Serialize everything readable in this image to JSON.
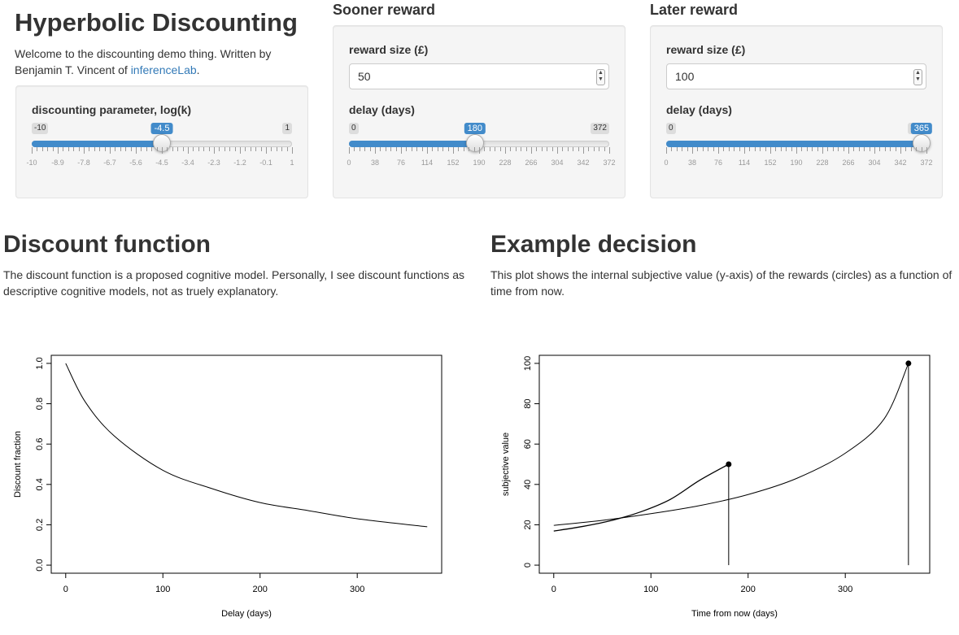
{
  "app": {
    "title": "Hyperbolic Discounting",
    "intro_text": "Welcome to the discounting demo thing. Written by Benjamin T. Vincent of",
    "intro_link": "inferenceLab",
    "intro_end": "."
  },
  "discount_panel": {
    "label": "discounting parameter, log(k)",
    "min": "-10",
    "max": "1",
    "value": -4.5,
    "value_label": "-4.5",
    "ticks": [
      "-10",
      "-8.9",
      "-7.8",
      "-6.7",
      "-5.6",
      "-4.5",
      "-3.4",
      "-2.3",
      "-1.2",
      "-0.1",
      "1"
    ]
  },
  "sooner": {
    "title": "Sooner reward",
    "reward_label": "reward size (£)",
    "reward_value": "50",
    "delay_label": "delay (days)",
    "min": "0",
    "max": "372",
    "value": 180,
    "value_label": "180",
    "ticks": [
      "0",
      "38",
      "76",
      "114",
      "152",
      "190",
      "228",
      "266",
      "304",
      "342",
      "372"
    ]
  },
  "later": {
    "title": "Later reward",
    "reward_label": "reward size (£)",
    "reward_value": "100",
    "delay_label": "delay (days)",
    "min": "0",
    "max": "372",
    "value": 365,
    "value_label": "365",
    "ticks": [
      "0",
      "38",
      "76",
      "114",
      "152",
      "190",
      "228",
      "266",
      "304",
      "342",
      "372"
    ]
  },
  "discount_section": {
    "title": "Discount function",
    "description": "The discount function is a proposed cognitive model. Personally, I see discount functions as descriptive cognitive models, not as truely explanatory."
  },
  "decision_section": {
    "title": "Example decision",
    "description": "This plot shows the internal subjective value (y-axis) of the rewards (circles) as a function of time from now."
  },
  "chart_data": [
    {
      "type": "line",
      "title": "",
      "xlabel": "Delay (days)",
      "ylabel": "Discount fraction",
      "xlim": [
        0,
        372
      ],
      "ylim": [
        0,
        1
      ],
      "xticks": [
        "0",
        "100",
        "200",
        "300"
      ],
      "yticks": [
        "0.0",
        "0.2",
        "0.4",
        "0.6",
        "0.8",
        "1.0"
      ],
      "grid": false,
      "series": [
        {
          "x": [
            0,
            20,
            50,
            100,
            150,
            200,
            250,
            300,
            372
          ],
          "y": [
            1.0,
            0.81,
            0.64,
            0.47,
            0.38,
            0.31,
            0.27,
            0.23,
            0.19
          ]
        }
      ]
    },
    {
      "type": "line",
      "title": "",
      "xlabel": "Time from now (days)",
      "ylabel": "subjective value",
      "xlim": [
        0,
        372
      ],
      "ylim": [
        0,
        100
      ],
      "xticks": [
        "0",
        "100",
        "200",
        "300"
      ],
      "yticks": [
        "0",
        "20",
        "40",
        "60",
        "80",
        "100"
      ],
      "grid": false,
      "series": [
        {
          "x": [
            0,
            30,
            60,
            90,
            120,
            150,
            180
          ],
          "y": [
            16.9,
            19.2,
            22.2,
            26.5,
            32.6,
            42.0,
            50
          ]
        },
        {
          "x": [
            0,
            50,
            100,
            150,
            200,
            250,
            300,
            340,
            365
          ],
          "y": [
            19.7,
            22.2,
            25.5,
            29.5,
            35.0,
            43.0,
            55.5,
            72.5,
            100
          ]
        }
      ],
      "points": [
        {
          "x": 180,
          "y": 50
        },
        {
          "x": 365,
          "y": 100
        }
      ]
    }
  ]
}
